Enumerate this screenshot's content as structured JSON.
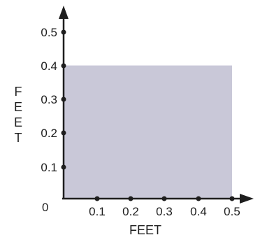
{
  "chart_data": {
    "type": "area",
    "x_axis": {
      "label": "FEET",
      "ticks": [
        "0.1",
        "0.2",
        "0.3",
        "0.4",
        "0.5"
      ],
      "range": [
        0,
        0.5
      ]
    },
    "y_axis": {
      "label_letters": [
        "F",
        "E",
        "E",
        "T"
      ],
      "ticks": [
        "0.1",
        "0.2",
        "0.3",
        "0.4",
        "0.5"
      ],
      "range": [
        0,
        0.5
      ]
    },
    "origin_label": "0",
    "shaded_region": {
      "x": [
        0,
        0.5
      ],
      "y": [
        0,
        0.4
      ],
      "color": "#c9c8d8"
    },
    "tick_values": [
      0.1,
      0.2,
      0.3,
      0.4,
      0.5
    ]
  }
}
